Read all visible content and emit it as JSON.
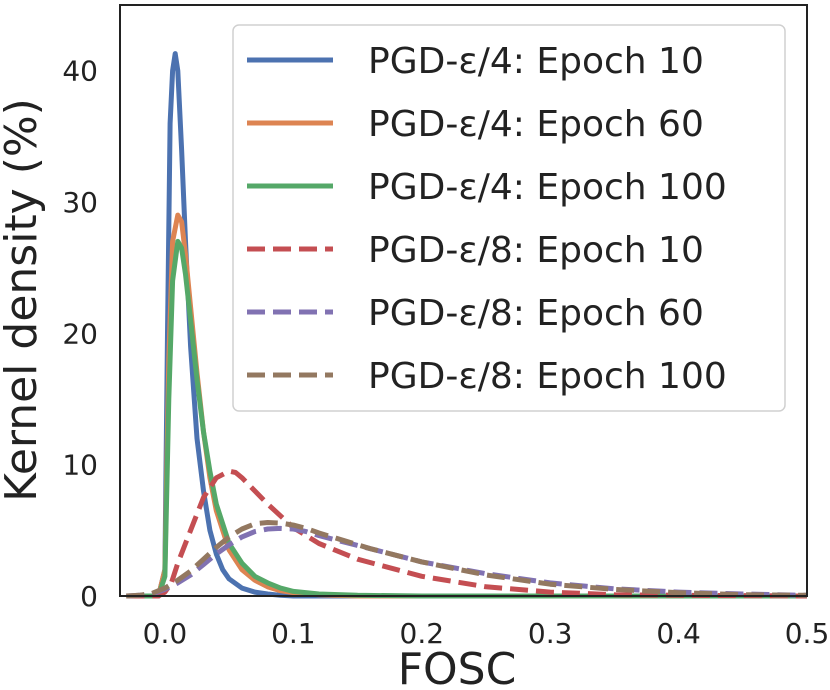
{
  "chart_data": {
    "type": "line",
    "title": "",
    "xlabel": "FOSC",
    "ylabel": "Kernel density (%)",
    "xlim": [
      -0.035,
      0.5
    ],
    "ylim": [
      0,
      45
    ],
    "xticks": [
      0.0,
      0.1,
      0.2,
      0.3,
      0.4,
      0.5
    ],
    "xtick_labels": [
      "0.0",
      "0.1",
      "0.2",
      "0.3",
      "0.4",
      "0.5"
    ],
    "yticks": [
      0,
      10,
      20,
      30,
      40
    ],
    "ytick_labels": [
      "0",
      "10",
      "20",
      "30",
      "40"
    ],
    "grid": false,
    "legend_position": "top-right",
    "series": [
      {
        "name": "PGD-ε/4: Epoch 10",
        "color": "#4c72b0",
        "dash": "solid",
        "x": [
          -0.03,
          -0.005,
          0.0,
          0.002,
          0.004,
          0.006,
          0.008,
          0.01,
          0.013,
          0.016,
          0.02,
          0.025,
          0.03,
          0.035,
          0.04,
          0.045,
          0.05,
          0.06,
          0.07,
          0.08,
          0.09,
          0.1,
          0.2,
          0.5
        ],
        "y": [
          0,
          0,
          2,
          20,
          36,
          40,
          41.3,
          40,
          34,
          27,
          19,
          12,
          8,
          5,
          3.2,
          2,
          1.3,
          0.6,
          0.3,
          0.15,
          0.05,
          0,
          0,
          0
        ]
      },
      {
        "name": "PGD-ε/4: Epoch 60",
        "color": "#dd8452",
        "dash": "solid",
        "x": [
          -0.03,
          -0.005,
          0.0,
          0.003,
          0.006,
          0.01,
          0.013,
          0.016,
          0.02,
          0.025,
          0.03,
          0.035,
          0.04,
          0.05,
          0.06,
          0.07,
          0.08,
          0.09,
          0.1,
          0.12,
          0.15,
          0.2,
          0.5
        ],
        "y": [
          0,
          0,
          2,
          18,
          27,
          29,
          28.5,
          26,
          22,
          17,
          12.5,
          9,
          6.5,
          3.5,
          2,
          1.2,
          0.7,
          0.4,
          0.25,
          0.1,
          0,
          0,
          0
        ]
      },
      {
        "name": "PGD-ε/4: Epoch 100",
        "color": "#55a868",
        "dash": "solid",
        "x": [
          -0.03,
          -0.005,
          0.0,
          0.003,
          0.006,
          0.01,
          0.013,
          0.016,
          0.02,
          0.025,
          0.03,
          0.035,
          0.04,
          0.05,
          0.06,
          0.07,
          0.08,
          0.09,
          0.1,
          0.12,
          0.15,
          0.2,
          0.5
        ],
        "y": [
          0,
          0,
          1.5,
          15,
          24,
          27,
          26.5,
          24.5,
          21,
          16.5,
          12.5,
          9.5,
          7,
          4,
          2.5,
          1.5,
          1,
          0.6,
          0.35,
          0.15,
          0.05,
          0,
          0
        ]
      },
      {
        "name": "PGD-ε/8: Epoch 10",
        "color": "#c44e52",
        "dash": "dashed",
        "x": [
          -0.03,
          -0.005,
          0.0,
          0.005,
          0.01,
          0.02,
          0.03,
          0.04,
          0.05,
          0.055,
          0.06,
          0.07,
          0.08,
          0.1,
          0.12,
          0.15,
          0.2,
          0.25,
          0.3,
          0.35,
          0.4,
          0.5
        ],
        "y": [
          0,
          0,
          0.3,
          1,
          2.5,
          5,
          7.5,
          9,
          9.5,
          9.4,
          9,
          8,
          7,
          5.2,
          4,
          2.8,
          1.5,
          0.7,
          0.3,
          0.1,
          0.05,
          0
        ]
      },
      {
        "name": "PGD-ε/8: Epoch 60",
        "color": "#8172b2",
        "dash": "dashed",
        "x": [
          -0.03,
          -0.02,
          -0.01,
          0.0,
          0.01,
          0.02,
          0.03,
          0.04,
          0.05,
          0.06,
          0.07,
          0.08,
          0.09,
          0.1,
          0.11,
          0.12,
          0.14,
          0.16,
          0.18,
          0.2,
          0.25,
          0.3,
          0.35,
          0.4,
          0.45,
          0.5
        ],
        "y": [
          0,
          0.05,
          0.15,
          0.5,
          1,
          1.6,
          2.4,
          3.2,
          3.9,
          4.5,
          4.9,
          5.1,
          5.15,
          5.1,
          4.9,
          4.6,
          4.1,
          3.6,
          3.1,
          2.6,
          1.7,
          1,
          0.55,
          0.3,
          0.15,
          0.05
        ]
      },
      {
        "name": "PGD-ε/8: Epoch 100",
        "color": "#937860",
        "dash": "dashed",
        "x": [
          -0.03,
          -0.02,
          -0.01,
          0.0,
          0.01,
          0.02,
          0.03,
          0.04,
          0.05,
          0.06,
          0.07,
          0.08,
          0.09,
          0.1,
          0.11,
          0.12,
          0.14,
          0.16,
          0.18,
          0.2,
          0.25,
          0.3,
          0.35,
          0.4,
          0.45,
          0.5
        ],
        "y": [
          0,
          0.05,
          0.2,
          0.6,
          1.2,
          1.9,
          2.8,
          3.7,
          4.5,
          5.1,
          5.5,
          5.6,
          5.55,
          5.4,
          5.15,
          4.8,
          4.2,
          3.6,
          3.1,
          2.6,
          1.6,
          0.9,
          0.5,
          0.25,
          0.1,
          0.05
        ]
      }
    ]
  }
}
